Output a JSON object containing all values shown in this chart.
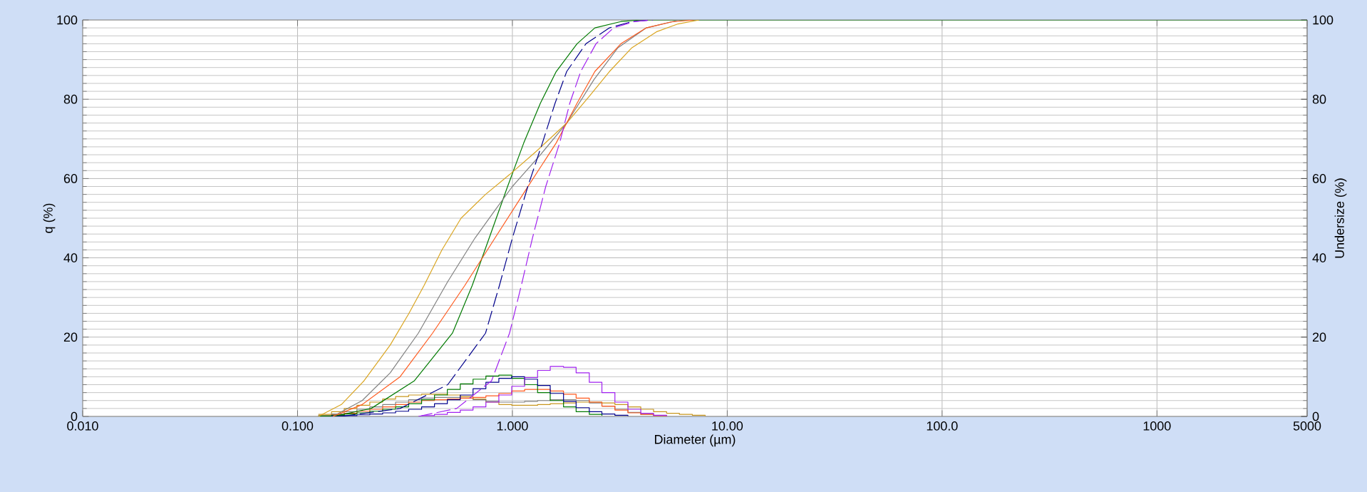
{
  "chart_data": {
    "type": "line",
    "xlabel": "Diameter (µm)",
    "ylabel": "q (%)",
    "y2label": "Undersize (%)",
    "log": "x",
    "grid": true,
    "xlim": [
      0.01,
      5000
    ],
    "xticks": [
      {
        "value": 0.01,
        "label": "0.010"
      },
      {
        "value": 0.1,
        "label": "0.100"
      },
      {
        "value": 1,
        "label": "1.000"
      },
      {
        "value": 10,
        "label": "10.00"
      },
      {
        "value": 100,
        "label": "100.0"
      },
      1000,
      5000
    ],
    "ylim": [
      0,
      100
    ],
    "yticks": [
      0,
      20,
      40,
      60,
      80,
      100
    ],
    "y2lim": [
      0,
      100
    ],
    "y2ticks": [
      0,
      20,
      40,
      60,
      80,
      100
    ],
    "series": [
      {
        "axis": "y2",
        "color": "#007a00",
        "x": [
          0.146,
          0.22,
          0.35,
          0.526,
          0.65,
          0.78,
          0.95,
          1.13,
          1.35,
          1.6,
          2.0,
          2.42,
          3.2,
          4,
          5000
        ],
        "values": [
          0,
          2,
          9,
          21,
          33,
          45,
          58,
          69,
          79,
          87,
          94,
          98,
          99.6,
          100,
          100
        ]
      },
      {
        "axis": "y2",
        "color": "#daa520",
        "x": [
          0.125,
          0.16,
          0.204,
          0.27,
          0.33,
          0.388,
          0.47,
          0.577,
          0.75,
          0.97,
          1.3,
          1.79,
          2.3,
          2.83,
          3.6,
          4.68,
          5.9,
          7.4
        ],
        "values": [
          0,
          3,
          9,
          18,
          26,
          33,
          42,
          50,
          56,
          61,
          67,
          74,
          81,
          87,
          93,
          97,
          99,
          100
        ]
      },
      {
        "axis": "y2",
        "color": "#808080",
        "x": [
          0.146,
          0.2,
          0.27,
          0.365,
          0.5,
          0.67,
          0.83,
          1.0,
          1.35,
          1.79,
          2.4,
          3.1,
          4.2,
          6
        ],
        "values": [
          0,
          4,
          11,
          21,
          34,
          45,
          52,
          58,
          66,
          74,
          85,
          93,
          98,
          100
        ]
      },
      {
        "axis": "y2",
        "color": "#ff5a1e",
        "x": [
          0.146,
          0.2,
          0.3,
          0.425,
          0.6,
          0.83,
          1.15,
          1.6,
          2.0,
          2.42,
          3.2,
          4.2,
          5.5,
          7
        ],
        "values": [
          0,
          3,
          10,
          21,
          33,
          45,
          57,
          69,
          79,
          87,
          94,
          98,
          99.5,
          100
        ]
      },
      {
        "axis": "y2",
        "color": "#00008b",
        "line_style": "dashed",
        "x": [
          0.16,
          0.3,
          0.5,
          0.75,
          0.87,
          1.0,
          1.18,
          1.38,
          1.58,
          1.79,
          2.2,
          2.83,
          3.6,
          4.5
        ],
        "values": [
          0,
          2,
          8,
          21,
          33,
          45,
          58,
          69,
          79,
          87,
          94,
          98,
          99.6,
          100
        ]
      },
      {
        "axis": "y2",
        "color": "#a020f0",
        "line_style": "dashed",
        "x": [
          0.365,
          0.55,
          0.8,
          0.97,
          1.1,
          1.24,
          1.43,
          1.66,
          1.85,
          2.08,
          2.45,
          2.96,
          3.7,
          4.5
        ],
        "values": [
          0,
          2,
          9,
          21,
          33,
          45,
          58,
          69,
          79,
          87,
          94,
          98,
          99.6,
          100
        ]
      },
      {
        "type": "step",
        "color": "#c8961e",
        "x": [
          0.125,
          0.144,
          0.165,
          0.189,
          0.217,
          0.249,
          0.286,
          0.329,
          0.378,
          0.434,
          0.498,
          0.572,
          0.656,
          0.753,
          0.865,
          0.993,
          1.14,
          1.31,
          1.5,
          1.73,
          1.98,
          2.28,
          2.61,
          3.0,
          3.45,
          3.96,
          4.54,
          5.22,
          5.99,
          6.88,
          7.9
        ],
        "values": [
          0.5,
          1.2,
          2.0,
          2.8,
          3.6,
          4.4,
          5.0,
          5.4,
          5.6,
          5.6,
          5.4,
          5.0,
          4.4,
          3.6,
          3.0,
          2.8,
          2.8,
          3.0,
          3.2,
          3.4,
          3.6,
          3.6,
          3.4,
          3.0,
          2.4,
          1.8,
          1.2,
          0.8,
          0.5,
          0.3,
          0.1
        ]
      },
      {
        "type": "step",
        "color": "#808080",
        "x": [
          0.125,
          0.144,
          0.165,
          0.189,
          0.217,
          0.249,
          0.286,
          0.329,
          0.378,
          0.434,
          0.498,
          0.572,
          0.656,
          0.753,
          0.865,
          0.993,
          1.14,
          1.31,
          1.5,
          1.73,
          1.98,
          2.28,
          2.61,
          3.0,
          3.45,
          3.96,
          4.54,
          5.22
        ],
        "values": [
          0.2,
          0.6,
          1.2,
          1.8,
          2.4,
          3.0,
          3.6,
          4.2,
          4.6,
          4.8,
          4.8,
          4.6,
          4.2,
          3.8,
          3.6,
          3.6,
          3.8,
          4.0,
          4.2,
          4.2,
          4.0,
          3.4,
          2.6,
          1.8,
          1.0,
          0.5,
          0.2,
          0.1
        ]
      },
      {
        "type": "step",
        "color": "#ff5a1e",
        "x": [
          0.125,
          0.144,
          0.165,
          0.189,
          0.217,
          0.249,
          0.286,
          0.329,
          0.378,
          0.434,
          0.498,
          0.572,
          0.656,
          0.753,
          0.865,
          0.993,
          1.14,
          1.31,
          1.5,
          1.73,
          1.98,
          2.28,
          2.61,
          3.0,
          3.45,
          3.96,
          4.54,
          5.22
        ],
        "values": [
          0.1,
          0.4,
          0.8,
          1.3,
          1.8,
          2.4,
          3.0,
          3.6,
          4.0,
          4.2,
          4.4,
          4.6,
          4.8,
          5.2,
          5.8,
          6.4,
          6.8,
          6.8,
          6.4,
          5.6,
          4.6,
          3.6,
          2.6,
          1.6,
          0.9,
          0.5,
          0.2,
          0.1
        ]
      },
      {
        "type": "step",
        "color": "#007a00",
        "x": [
          0.125,
          0.144,
          0.165,
          0.189,
          0.217,
          0.249,
          0.286,
          0.329,
          0.378,
          0.434,
          0.498,
          0.572,
          0.656,
          0.753,
          0.865,
          0.993,
          1.14,
          1.31,
          1.5,
          1.73,
          1.98,
          2.28,
          2.61
        ],
        "values": [
          0.1,
          0.3,
          0.6,
          0.9,
          1.3,
          1.8,
          2.4,
          3.2,
          4.2,
          5.4,
          6.8,
          8.2,
          9.4,
          10.2,
          10.4,
          9.6,
          8.0,
          6.0,
          4.0,
          2.4,
          1.2,
          0.5,
          0.2
        ]
      },
      {
        "type": "step",
        "color": "#00008b",
        "x": [
          0.144,
          0.165,
          0.189,
          0.217,
          0.249,
          0.286,
          0.329,
          0.378,
          0.434,
          0.498,
          0.572,
          0.656,
          0.753,
          0.865,
          0.993,
          1.14,
          1.31,
          1.5,
          1.73,
          1.98,
          2.28,
          2.61,
          3.0,
          3.45
        ],
        "values": [
          0.1,
          0.2,
          0.4,
          0.6,
          0.9,
          1.3,
          1.8,
          2.4,
          3.2,
          4.2,
          5.4,
          7.0,
          8.6,
          9.6,
          10.0,
          9.4,
          7.8,
          5.8,
          3.8,
          2.2,
          1.2,
          0.6,
          0.3,
          0.1
        ]
      },
      {
        "type": "step",
        "color": "#a020f0",
        "x": [
          0.378,
          0.434,
          0.498,
          0.572,
          0.656,
          0.753,
          0.865,
          0.993,
          1.14,
          1.31,
          1.5,
          1.73,
          1.98,
          2.28,
          2.61,
          3.0,
          3.45,
          3.96,
          4.54,
          5.22
        ],
        "values": [
          0.2,
          0.5,
          1.0,
          1.6,
          2.4,
          3.6,
          5.4,
          7.6,
          9.8,
          11.6,
          12.6,
          12.4,
          11.0,
          8.6,
          6.0,
          3.6,
          1.8,
          0.8,
          0.3,
          0.1
        ]
      }
    ]
  }
}
